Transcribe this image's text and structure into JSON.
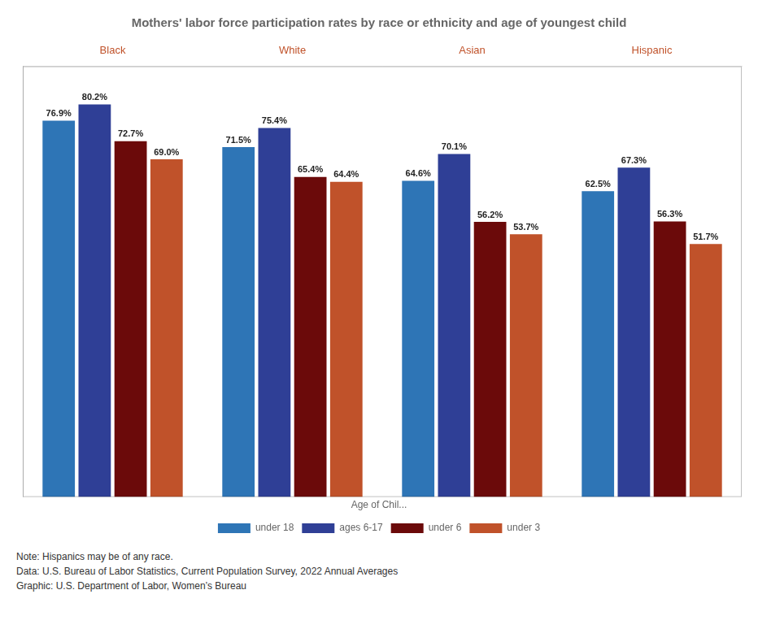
{
  "chart_data": {
    "type": "bar",
    "title": "Mothers' labor force participation rates by race or ethnicity and age of youngest child",
    "categories": [
      "Black",
      "White",
      "Asian",
      "Hispanic"
    ],
    "series": [
      {
        "name": "under 18",
        "color": "#2E75B6",
        "values": [
          76.9,
          71.5,
          64.6,
          62.5
        ],
        "value_labels": [
          "76.9%",
          "71.5%",
          "64.6%",
          "62.5%"
        ]
      },
      {
        "name": "ages 6-17",
        "color": "#2F3F96",
        "values": [
          80.2,
          75.4,
          70.1,
          67.3
        ],
        "value_labels": [
          "80.2%",
          "75.4%",
          "70.1%",
          "67.3%"
        ]
      },
      {
        "name": "under 6",
        "color": "#6B0A0A",
        "values": [
          72.7,
          65.4,
          56.2,
          56.3
        ],
        "value_labels": [
          "72.7%",
          "65.4%",
          "56.2%",
          "56.3%"
        ]
      },
      {
        "name": "under 3",
        "color": "#C0522A",
        "values": [
          69.0,
          64.4,
          53.7,
          51.7
        ],
        "value_labels": [
          "69.0%",
          "64.4%",
          "53.7%",
          "51.7%"
        ]
      }
    ],
    "legend_title": "Age of Chil...",
    "annotations": [
      "Note: Hispanics may be of any race.",
      "Data: U.S. Bureau of Labor Statistics, Current Population Survey, 2022 Annual Averages",
      "Graphic: U.S. Department of Labor, Women’s Bureau"
    ],
    "ylim": [
      0,
      88
    ],
    "yticks": [],
    "grid": false,
    "legend": "bottom",
    "data_labels": true,
    "tick_labels": "x"
  }
}
